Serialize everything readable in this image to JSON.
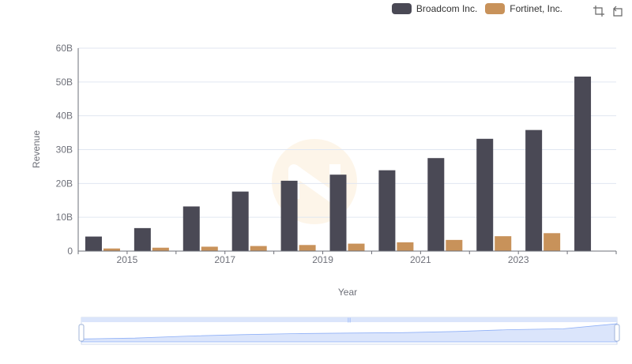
{
  "legend": {
    "series_0": "Broadcom Inc.",
    "series_1": "Fortinet, Inc."
  },
  "toolbar": {
    "zoom_icon": "zoom-icon",
    "restore_icon": "restore-icon"
  },
  "colors": {
    "broadcom": "#4a4955",
    "fortinet": "#c8925a",
    "grid": "#e0e6f1",
    "axis": "#6e7079",
    "slider_fill": "#dbe5fb",
    "slider_line": "#8fb0f7"
  },
  "chart_data": {
    "type": "bar",
    "title": "",
    "xlabel": "Year",
    "ylabel": "Revenue",
    "ylim": [
      0,
      60
    ],
    "y_unit": "B",
    "y_ticks": [
      "0",
      "10B",
      "20B",
      "30B",
      "40B",
      "50B",
      "60B"
    ],
    "categories": [
      "2014",
      "2015",
      "2016",
      "2017",
      "2018",
      "2019",
      "2020",
      "2021",
      "2022",
      "2023",
      "2024"
    ],
    "x_tick_labels": [
      "2015",
      "2017",
      "2019",
      "2021",
      "2023"
    ],
    "series": [
      {
        "name": "Broadcom Inc.",
        "values": [
          4.3,
          6.8,
          13.2,
          17.6,
          20.8,
          22.6,
          23.9,
          27.5,
          33.2,
          35.8,
          51.6
        ]
      },
      {
        "name": "Fortinet, Inc.",
        "values": [
          0.77,
          1.0,
          1.3,
          1.5,
          1.8,
          2.2,
          2.6,
          3.3,
          4.4,
          5.3,
          0
        ]
      }
    ]
  }
}
